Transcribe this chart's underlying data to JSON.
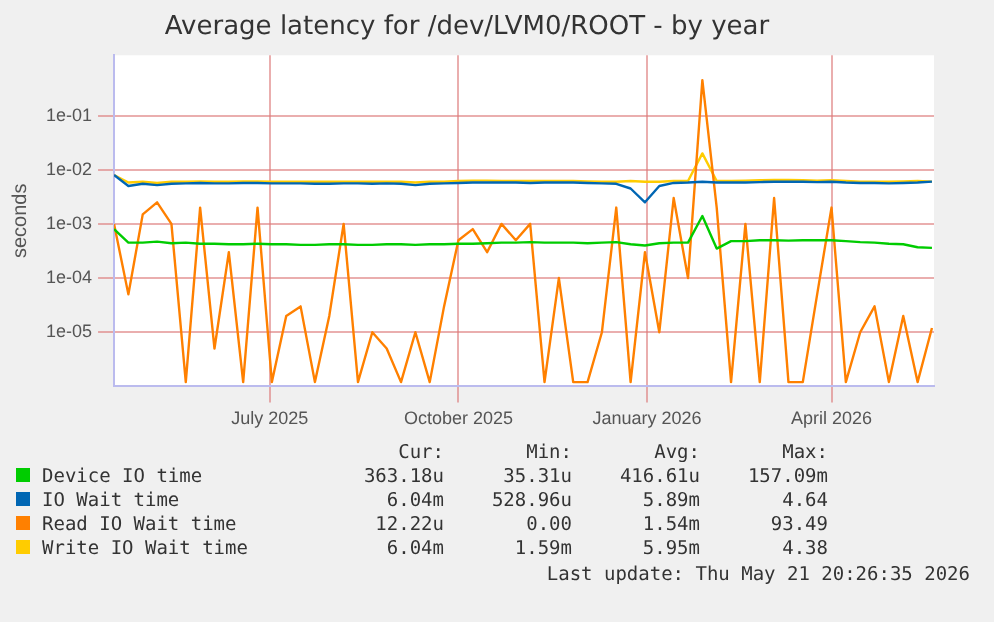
{
  "chart_data": {
    "type": "line",
    "title": "Average latency for /dev/LVM0/ROOT - by year",
    "ylabel": "seconds",
    "x": [
      "2025-04-16",
      "2025-04-23",
      "2025-04-30",
      "2025-05-07",
      "2025-05-14",
      "2025-05-21",
      "2025-05-28",
      "2025-06-04",
      "2025-06-11",
      "2025-06-18",
      "2025-06-25",
      "2025-07-02",
      "2025-07-09",
      "2025-07-16",
      "2025-07-23",
      "2025-07-30",
      "2025-08-06",
      "2025-08-13",
      "2025-08-20",
      "2025-08-27",
      "2025-09-03",
      "2025-09-10",
      "2025-09-17",
      "2025-09-24",
      "2025-10-01",
      "2025-10-08",
      "2025-10-15",
      "2025-10-22",
      "2025-10-29",
      "2025-11-05",
      "2025-11-12",
      "2025-11-19",
      "2025-11-26",
      "2025-12-03",
      "2025-12-10",
      "2025-12-17",
      "2025-12-24",
      "2025-12-31",
      "2026-01-07",
      "2026-01-14",
      "2026-01-21",
      "2026-01-28",
      "2026-02-04",
      "2026-02-11",
      "2026-02-18",
      "2026-02-25",
      "2026-03-04",
      "2026-03-11",
      "2026-03-18",
      "2026-03-25",
      "2026-04-01",
      "2026-04-08",
      "2026-04-15",
      "2026-04-22",
      "2026-04-29",
      "2026-05-06",
      "2026-05-13",
      "2026-05-20"
    ],
    "series": [
      {
        "name": "Device IO time",
        "color": "#00cc00",
        "values": [
          0.0008,
          0.00045,
          0.00045,
          0.00047,
          0.00044,
          0.00045,
          0.00043,
          0.00043,
          0.00042,
          0.00042,
          0.00043,
          0.00042,
          0.00042,
          0.00041,
          0.00041,
          0.00042,
          0.00042,
          0.00041,
          0.00041,
          0.00042,
          0.00042,
          0.00041,
          0.00042,
          0.00042,
          0.00043,
          0.00043,
          0.00044,
          0.00045,
          0.00045,
          0.00046,
          0.00045,
          0.00045,
          0.00045,
          0.00044,
          0.00045,
          0.00046,
          0.00042,
          0.0004,
          0.00044,
          0.00045,
          0.00045,
          0.0014,
          0.00035,
          0.00048,
          0.00048,
          0.0005,
          0.0005,
          0.00049,
          0.0005,
          0.0005,
          0.0005,
          0.00048,
          0.00046,
          0.00045,
          0.00043,
          0.00042,
          0.00037,
          0.00036
        ]
      },
      {
        "name": "IO Wait time",
        "color": "#0066b3",
        "values": [
          0.008,
          0.005,
          0.0055,
          0.0052,
          0.0055,
          0.0056,
          0.0057,
          0.0056,
          0.0056,
          0.0057,
          0.0057,
          0.0056,
          0.0056,
          0.0056,
          0.0055,
          0.0055,
          0.0056,
          0.0056,
          0.0055,
          0.0056,
          0.0055,
          0.0052,
          0.0055,
          0.0056,
          0.0057,
          0.0058,
          0.0058,
          0.0058,
          0.0058,
          0.0057,
          0.0058,
          0.0058,
          0.0058,
          0.0057,
          0.0056,
          0.0055,
          0.0045,
          0.0025,
          0.005,
          0.0057,
          0.0058,
          0.006,
          0.0058,
          0.0058,
          0.0058,
          0.0059,
          0.006,
          0.006,
          0.006,
          0.0059,
          0.006,
          0.0058,
          0.0057,
          0.0057,
          0.0056,
          0.0057,
          0.0058,
          0.00604
        ]
      },
      {
        "name": "Read IO Wait time",
        "color": "#ff8000",
        "values": [
          0.001,
          5e-05,
          0.0015,
          0.0025,
          0.001,
          1.2e-06,
          0.002,
          5e-06,
          0.0003,
          1.2e-06,
          0.002,
          1.2e-06,
          2e-05,
          3e-05,
          1.2e-06,
          2e-05,
          0.001,
          1.2e-06,
          1e-05,
          5e-06,
          1.2e-06,
          1e-05,
          1.2e-06,
          3e-05,
          0.0005,
          0.0008,
          0.0003,
          0.001,
          0.0005,
          0.001,
          1.2e-06,
          0.0001,
          1.2e-06,
          1.2e-06,
          1e-05,
          0.002,
          1.2e-06,
          0.0003,
          1e-05,
          0.003,
          0.0001,
          0.45,
          0.002,
          1.2e-06,
          0.001,
          1.2e-06,
          0.003,
          1.2e-06,
          1.2e-06,
          5e-05,
          0.002,
          1.2e-06,
          1e-05,
          3e-05,
          1.2e-06,
          2e-05,
          1.2e-06,
          1.2e-05
        ]
      },
      {
        "name": "Write IO Wait time",
        "color": "#ffcc00",
        "values": [
          0.008,
          0.0058,
          0.006,
          0.0057,
          0.006,
          0.006,
          0.0061,
          0.006,
          0.006,
          0.0061,
          0.0061,
          0.006,
          0.006,
          0.006,
          0.006,
          0.006,
          0.006,
          0.006,
          0.006,
          0.006,
          0.006,
          0.0058,
          0.006,
          0.006,
          0.0062,
          0.0063,
          0.0063,
          0.0062,
          0.0062,
          0.0062,
          0.0062,
          0.0062,
          0.0062,
          0.0061,
          0.006,
          0.006,
          0.0062,
          0.006,
          0.006,
          0.0062,
          0.0062,
          0.02,
          0.0062,
          0.0062,
          0.0063,
          0.0064,
          0.0065,
          0.0065,
          0.0064,
          0.0063,
          0.0064,
          0.0062,
          0.006,
          0.006,
          0.006,
          0.0061,
          0.0062,
          0.00604
        ]
      }
    ],
    "xlim": [
      "2025-04-16",
      "2026-05-21"
    ],
    "xticks": [
      {
        "value": "2025-07-01",
        "label": "July 2025"
      },
      {
        "value": "2025-10-01",
        "label": "October 2025"
      },
      {
        "value": "2026-01-01",
        "label": "January 2026"
      },
      {
        "value": "2026-04-01",
        "label": "April 2026"
      }
    ],
    "ylim": [
      1e-06,
      1.3
    ],
    "yticks": [
      {
        "value": 1e-05,
        "label": "1e-05"
      },
      {
        "value": 0.0001,
        "label": "1e-04"
      },
      {
        "value": 0.001,
        "label": "1e-03"
      },
      {
        "value": 0.01,
        "label": "1e-02"
      },
      {
        "value": 0.1,
        "label": "1e-01"
      }
    ],
    "log": "y",
    "grid": true,
    "legend": "bottom",
    "marker": "none",
    "line_style": "solid",
    "annotations": [
      "Cur:",
      "Min:",
      "Avg:",
      "Max:",
      "363.18u",
      "35.31u",
      "416.61u",
      "157.09m",
      "6.04m",
      "528.96u",
      "5.89m",
      "4.64",
      "12.22u",
      "0.00",
      "1.54m",
      "93.49",
      "6.04m",
      "1.59m",
      "5.95m",
      "4.38",
      "Last update: Thu May 21 20:26:35 2026"
    ]
  }
}
